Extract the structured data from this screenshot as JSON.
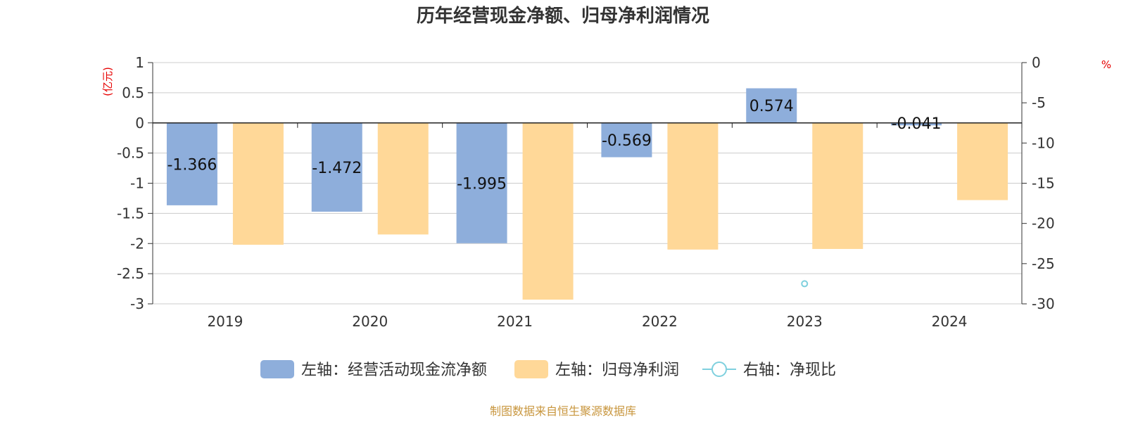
{
  "chart_data": {
    "type": "bar",
    "title": "历年经营现金净额、归母净利润情况",
    "categories": [
      "2019",
      "2020",
      "2021",
      "2022",
      "2023",
      "2024"
    ],
    "left_axis": {
      "unit": "(亿元)",
      "ylim": [
        -3,
        1
      ],
      "ticks": [
        1,
        0.5,
        0,
        -0.5,
        -1,
        -1.5,
        -2,
        -2.5,
        -3
      ],
      "tick_labels": [
        "1",
        "0.5",
        "0",
        "-0.5",
        "-1",
        "-1.5",
        "-2",
        "-2.5",
        "-3"
      ]
    },
    "right_axis": {
      "unit": "%",
      "ylim": [
        -30,
        0
      ],
      "ticks": [
        0,
        -5,
        -10,
        -15,
        -20,
        -25,
        -30
      ],
      "tick_labels": [
        "0",
        "-5",
        "-10",
        "-15",
        "-20",
        "-25",
        "-30"
      ]
    },
    "series": [
      {
        "name": "左轴：经营活动现金流净额",
        "axis": "left",
        "type": "bar",
        "color": "#8eaedb",
        "values": [
          -1.366,
          -1.472,
          -1.995,
          -0.569,
          0.574,
          -0.041
        ],
        "labels": [
          "-1.366",
          "-1.472",
          "-1.995",
          "-0.569",
          "0.574",
          "-0.041"
        ]
      },
      {
        "name": "左轴：归母净利润",
        "axis": "left",
        "type": "bar",
        "color": "#ffd898",
        "values": [
          -2.02,
          -1.85,
          -2.93,
          -2.1,
          -2.09,
          -1.28
        ]
      },
      {
        "name": "右轴：净现比",
        "axis": "right",
        "type": "line",
        "color": "#7fd0de",
        "values": [
          null,
          null,
          null,
          null,
          -27.5,
          null
        ]
      }
    ],
    "grid": true,
    "legend_position": "bottom",
    "source": "制图数据来自恒生聚源数据库"
  }
}
